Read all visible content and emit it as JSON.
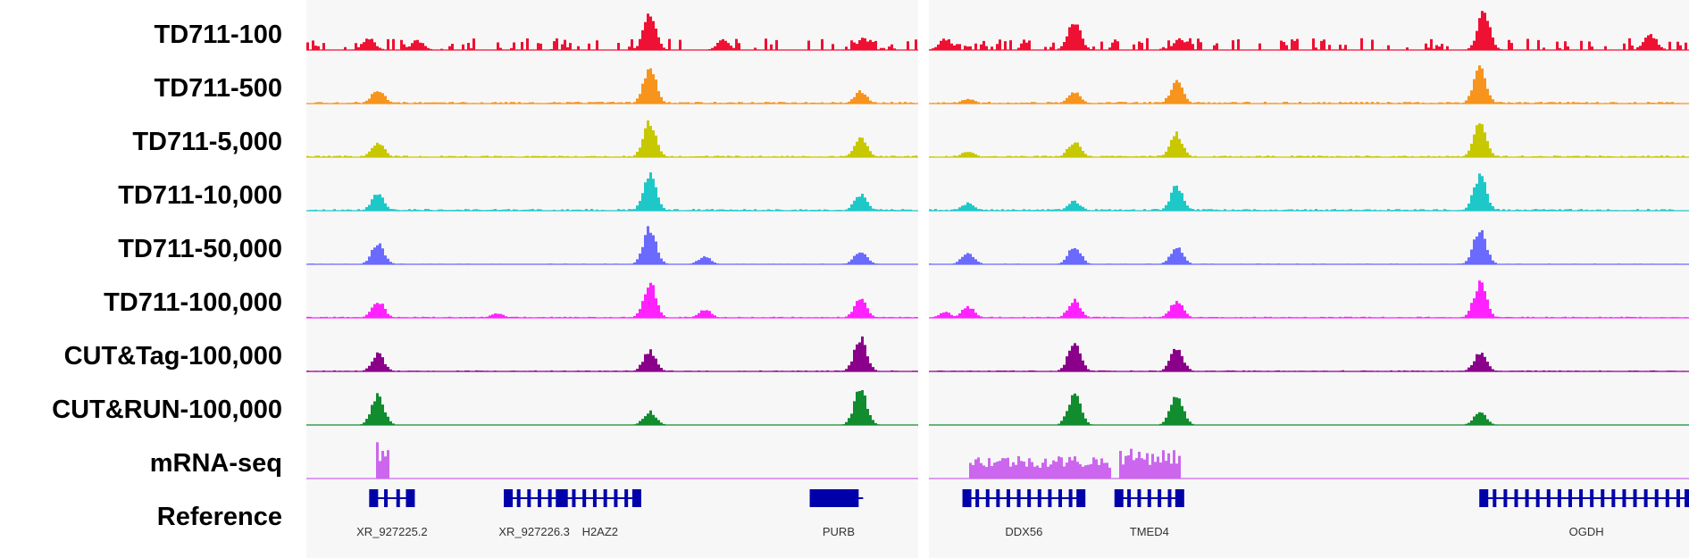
{
  "chart_data": {
    "type": "area",
    "panels": 2,
    "tracks": [
      {
        "name": "TD711-100",
        "color": "#ee1133",
        "peaks": [
          [
            [
              0.1,
              0.3
            ],
            [
              0.68,
              0.25
            ],
            [
              0.56,
              0.9
            ],
            [
              0.18,
              0.25
            ],
            [
              0.91,
              0.3
            ]
          ],
          [
            [
              0.02,
              0.3
            ],
            [
              0.19,
              0.75
            ],
            [
              0.33,
              0.3
            ],
            [
              0.73,
              0.95
            ],
            [
              0.95,
              0.4
            ]
          ]
        ],
        "noise": 0.28,
        "sparse": true
      },
      {
        "name": "TD711-500",
        "color": "#f7941d",
        "peaks": [
          [
            [
              0.115,
              0.38
            ],
            [
              0.56,
              0.95
            ],
            [
              0.905,
              0.32
            ]
          ],
          [
            [
              0.05,
              0.12
            ],
            [
              0.19,
              0.3
            ],
            [
              0.325,
              0.55
            ],
            [
              0.725,
              0.9
            ]
          ]
        ],
        "noise": 0.07
      },
      {
        "name": "TD711-5,000",
        "color": "#c8c800",
        "peaks": [
          [
            [
              0.115,
              0.4
            ],
            [
              0.56,
              0.95
            ],
            [
              0.905,
              0.5
            ]
          ],
          [
            [
              0.05,
              0.15
            ],
            [
              0.19,
              0.4
            ],
            [
              0.325,
              0.6
            ],
            [
              0.725,
              0.95
            ]
          ]
        ],
        "noise": 0.06
      },
      {
        "name": "TD711-10,000",
        "color": "#1ec8c8",
        "peaks": [
          [
            [
              0.115,
              0.45
            ],
            [
              0.56,
              0.95
            ],
            [
              0.905,
              0.42
            ]
          ],
          [
            [
              0.05,
              0.2
            ],
            [
              0.19,
              0.25
            ],
            [
              0.325,
              0.65
            ],
            [
              0.725,
              0.92
            ]
          ]
        ],
        "noise": 0.07
      },
      {
        "name": "TD711-50,000",
        "color": "#6a6aff",
        "peaks": [
          [
            [
              0.115,
              0.55
            ],
            [
              0.56,
              0.95
            ],
            [
              0.65,
              0.2
            ],
            [
              0.905,
              0.35
            ]
          ],
          [
            [
              0.05,
              0.3
            ],
            [
              0.19,
              0.5
            ],
            [
              0.325,
              0.45
            ],
            [
              0.725,
              0.92
            ]
          ]
        ],
        "noise": 0.025
      },
      {
        "name": "TD711-100,000",
        "color": "#ff22ff",
        "peaks": [
          [
            [
              0.115,
              0.45
            ],
            [
              0.31,
              0.12
            ],
            [
              0.56,
              0.9
            ],
            [
              0.65,
              0.22
            ],
            [
              0.905,
              0.5
            ]
          ],
          [
            [
              0.02,
              0.15
            ],
            [
              0.05,
              0.3
            ],
            [
              0.19,
              0.45
            ],
            [
              0.325,
              0.45
            ],
            [
              0.725,
              0.9
            ]
          ]
        ],
        "noise": 0.045
      },
      {
        "name": "CUT&Tag-100,000",
        "color": "#8b008b",
        "peaks": [
          [
            [
              0.115,
              0.45
            ],
            [
              0.56,
              0.55
            ],
            [
              0.905,
              0.85
            ]
          ],
          [
            [
              0.19,
              0.75
            ],
            [
              0.325,
              0.62
            ],
            [
              0.725,
              0.48
            ]
          ]
        ],
        "noise": 0.04
      },
      {
        "name": "CUT&RUN-100,000",
        "color": "#118c2e",
        "peaks": [
          [
            [
              0.115,
              0.75
            ],
            [
              0.56,
              0.35
            ],
            [
              0.905,
              0.92
            ]
          ],
          [
            [
              0.19,
              0.82
            ],
            [
              0.325,
              0.85
            ],
            [
              0.725,
              0.32
            ]
          ]
        ],
        "noise": 0.01
      },
      {
        "name": "mRNA-seq",
        "color": "#cc66ee",
        "blocks": [
          [
            [
              0.11,
              0.135,
              0.9
            ]
          ],
          [
            [
              0.05,
              0.24,
              0.55
            ],
            [
              0.25,
              0.33,
              0.7
            ]
          ]
        ]
      },
      {
        "name": "Reference",
        "color": "#0000aa"
      }
    ],
    "genes": [
      {
        "label": "XR_927225.2",
        "panel": 0,
        "start": 0.11,
        "end": 0.17,
        "strand": "+"
      },
      {
        "label": "XR_927226.3",
        "panel": 0,
        "start": 0.33,
        "end": 0.415,
        "strand": "+"
      },
      {
        "label": "H2AZ2",
        "panel": 0,
        "start": 0.42,
        "end": 0.54,
        "strand": "-"
      },
      {
        "label": "PURB",
        "panel": 0,
        "start": 0.83,
        "end": 0.91,
        "strand": "-"
      },
      {
        "label": "DDX56",
        "panel": 1,
        "start": 0.05,
        "end": 0.2,
        "strand": "-"
      },
      {
        "label": "TMED4",
        "panel": 1,
        "start": 0.25,
        "end": 0.33,
        "strand": "-"
      },
      {
        "label": "OGDH",
        "panel": 1,
        "start": 0.73,
        "end": 1.0,
        "strand": "+"
      }
    ],
    "xlabel": "",
    "ylabel": ""
  }
}
